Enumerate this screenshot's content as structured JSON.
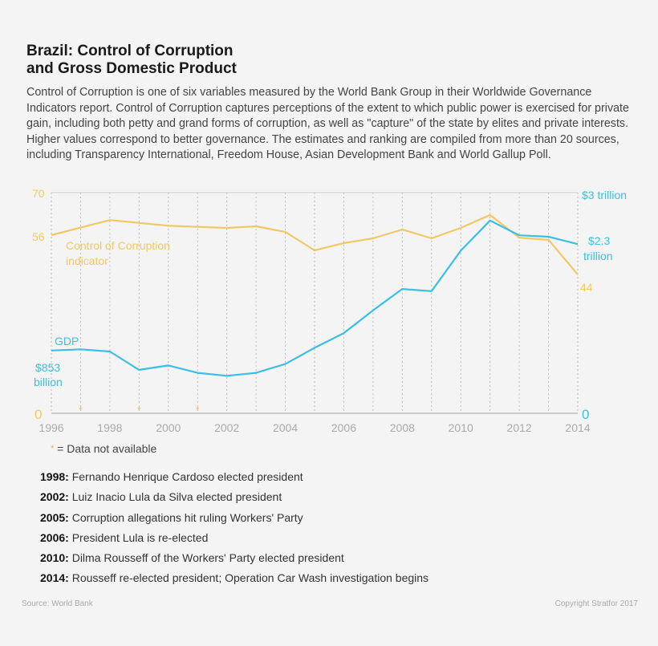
{
  "title_line1": "Brazil: Control of Corruption",
  "title_line2": "and Gross Domestic Product",
  "description": "Control of Corruption is one of six variables measured by the World Bank Group in their Worldwide Governance Indicators report. Control of Corruption captures perceptions of the extent to which public power is exercised for private gain, including both petty and grand forms of corruption, as well as \"capture\" of the state by elites and private interests. Higher values correspond to better governance. The estimates and ranking are compiled from more than 20 sources, including Transparency International, Freedom House, Asian Development Bank and World Gallup Poll.",
  "chart_data": {
    "type": "line",
    "x": [
      1996,
      1997,
      1998,
      1999,
      2000,
      2001,
      2002,
      2003,
      2004,
      2005,
      2006,
      2007,
      2008,
      2009,
      2010,
      2011,
      2012,
      2013,
      2014
    ],
    "xlim": [
      1996,
      2014
    ],
    "x_ticks": [
      "1996",
      "1998",
      "2000",
      "2002",
      "2004",
      "2006",
      "2008",
      "2010",
      "2012",
      "2014"
    ],
    "grid": "vertical dotted, yearly",
    "colors": {
      "corruption": "#f2c865",
      "gdp": "#3bbfe4"
    },
    "left_axis": {
      "ylim": [
        0,
        70
      ],
      "tick_labels": [
        "70",
        "56",
        "0"
      ]
    },
    "right_axis": {
      "ylim_trillion": [
        0,
        3
      ],
      "tick_labels": [
        "$3 trillion",
        "0"
      ]
    },
    "series": [
      {
        "name": "Control of Corruption indicator",
        "label_line1": "Control of Corruption",
        "label_line2": "indicator",
        "axis": "left",
        "values": [
          56.5,
          null,
          61.3,
          null,
          59.5,
          null,
          58.8,
          59.3,
          57.5,
          51.7,
          54.0,
          55.5,
          58.3,
          55.5,
          58.8,
          62.9,
          55.7,
          55.0,
          44
        ],
        "end_label": "44"
      },
      {
        "name": "GDP",
        "axis": "right",
        "unit": "trillion USD",
        "values": [
          0.853,
          0.87,
          0.84,
          0.59,
          0.65,
          0.55,
          0.51,
          0.55,
          0.67,
          0.89,
          1.09,
          1.4,
          1.69,
          1.66,
          2.21,
          2.62,
          2.42,
          2.4,
          2.3
        ],
        "start_label_line1": "$853",
        "start_label_line2": "billion",
        "end_label_line1": "$2.3",
        "end_label_line2": "trillion"
      }
    ],
    "missing_marker": "*",
    "missing_years": [
      1997,
      1999,
      2001
    ]
  },
  "legend_note": {
    "star": "*",
    "text": " = Data not available"
  },
  "events": [
    {
      "year": "1998:",
      "text": " Fernando Henrique Cardoso elected president"
    },
    {
      "year": "2002:",
      "text": " Luiz Inacio Lula da Silva elected president"
    },
    {
      "year": "2005:",
      "text": " Corruption allegations hit ruling Workers' Party"
    },
    {
      "year": "2006:",
      "text": " President Lula is re-elected"
    },
    {
      "year": "2010:",
      "text": " Dilma Rousseff of the Workers' Party elected president"
    },
    {
      "year": "2014:",
      "text": " Rousseff re-elected president; Operation Car Wash investigation begins"
    }
  ],
  "source": "Source: World Bank",
  "copyright": "Copyright Stratfor 2017"
}
